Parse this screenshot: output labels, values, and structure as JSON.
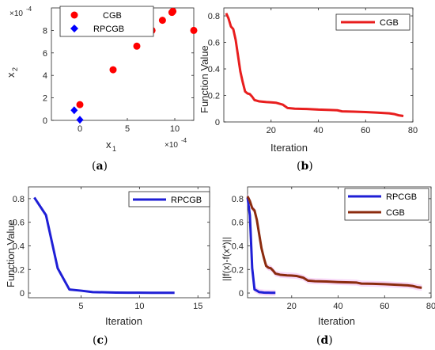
{
  "colors": {
    "cgb_scatter": "#ff0000",
    "rpcgb_scatter": "#0000ff",
    "cgb_line": "#e81e1e",
    "rpcgb_line": "#1f1fd6",
    "cgb_brown": "#8b2b0e",
    "band": "#f2b8f2"
  },
  "panels": [
    {
      "caption_open": "(",
      "caption_letter": "a",
      "caption_close": ")"
    },
    {
      "caption_open": "(",
      "caption_letter": "b",
      "caption_close": ")"
    },
    {
      "caption_open": "(",
      "caption_letter": "c",
      "caption_close": ")"
    },
    {
      "caption_open": "(",
      "caption_letter": "d",
      "caption_close": ")"
    }
  ],
  "chart_data": [
    {
      "type": "scatter",
      "xlabel": "x",
      "xlabel_sub": "1",
      "ylabel": "x",
      "ylabel_sub": "2",
      "x_exponent_base": "×10",
      "x_exponent": "-4",
      "y_exponent_base": "×10",
      "y_exponent": "-4",
      "xlim": [
        -3,
        12
      ],
      "ylim": [
        0,
        10
      ],
      "xticks": [
        0,
        5,
        10
      ],
      "yticks": [
        0,
        2,
        4,
        6,
        8
      ],
      "legend": "top-center",
      "series": [
        {
          "name": "CGB",
          "marker": "circle",
          "points": [
            [
              0.0,
              1.4
            ],
            [
              3.5,
              4.5
            ],
            [
              6.0,
              6.6
            ],
            [
              7.6,
              8.0
            ],
            [
              8.7,
              8.9
            ],
            [
              9.7,
              9.6
            ],
            [
              9.8,
              9.7
            ],
            [
              12.0,
              8.0
            ]
          ]
        },
        {
          "name": "RPCGB",
          "marker": "diamond",
          "points": [
            [
              -0.6,
              0.9
            ],
            [
              0.0,
              0.05
            ]
          ]
        }
      ]
    },
    {
      "type": "line",
      "xlabel": "Iteration",
      "ylabel": "Function Value",
      "xlim": [
        0,
        80
      ],
      "ylim": [
        0,
        0.86
      ],
      "xticks": [
        20,
        40,
        60,
        80
      ],
      "yticks": [
        0,
        0.2,
        0.4,
        0.6,
        0.8
      ],
      "legend": "top-right",
      "series": [
        {
          "name": "CGB",
          "x": [
            1,
            2,
            3,
            4,
            5,
            6,
            7,
            8,
            9,
            10,
            11,
            12,
            13,
            14,
            15,
            18,
            20,
            22,
            25,
            27,
            30,
            35,
            40,
            45,
            48,
            50,
            55,
            60,
            65,
            70,
            72,
            74,
            76
          ],
          "y": [
            0.82,
            0.78,
            0.72,
            0.7,
            0.62,
            0.5,
            0.38,
            0.3,
            0.23,
            0.215,
            0.21,
            0.19,
            0.165,
            0.16,
            0.155,
            0.15,
            0.148,
            0.145,
            0.13,
            0.105,
            0.1,
            0.098,
            0.093,
            0.09,
            0.088,
            0.08,
            0.078,
            0.075,
            0.07,
            0.065,
            0.06,
            0.05,
            0.045
          ]
        }
      ]
    },
    {
      "type": "line",
      "xlabel": "Iteration",
      "ylabel": "Function Value",
      "xlim": [
        0.5,
        16
      ],
      "ylim": [
        -0.04,
        0.9
      ],
      "xticks": [
        5,
        10,
        15
      ],
      "yticks": [
        0,
        0.2,
        0.4,
        0.6,
        0.8
      ],
      "legend": "top-right",
      "series": [
        {
          "name": "RPCGB",
          "x": [
            1,
            2,
            3,
            4,
            5,
            6,
            7,
            8,
            9,
            10,
            11,
            12,
            13
          ],
          "y": [
            0.81,
            0.66,
            0.21,
            0.03,
            0.02,
            0.008,
            0.006,
            0.004,
            0.003,
            0.003,
            0.002,
            0.002,
            0.002
          ]
        }
      ]
    },
    {
      "type": "line",
      "xlabel": "Iteration",
      "ylabel": "||f(x)-f(x*)||",
      "xlim": [
        1,
        80
      ],
      "ylim": [
        -0.04,
        0.9
      ],
      "xticks": [
        20,
        40,
        60,
        80
      ],
      "yticks": [
        0,
        0.2,
        0.4,
        0.6,
        0.8
      ],
      "legend": "top-right",
      "series": [
        {
          "name": "RPCGB",
          "x": [
            1,
            2,
            3,
            4,
            5,
            6,
            7,
            8,
            9,
            10,
            11,
            12,
            13
          ],
          "y": [
            0.81,
            0.66,
            0.21,
            0.03,
            0.02,
            0.008,
            0.006,
            0.004,
            0.003,
            0.003,
            0.002,
            0.002,
            0.002
          ]
        },
        {
          "name": "CGB",
          "x": [
            1,
            2,
            3,
            4,
            5,
            6,
            7,
            8,
            9,
            10,
            11,
            12,
            13,
            14,
            15,
            18,
            20,
            22,
            25,
            27,
            30,
            35,
            40,
            45,
            48,
            50,
            55,
            60,
            65,
            70,
            72,
            74,
            76
          ],
          "y": [
            0.82,
            0.78,
            0.72,
            0.7,
            0.62,
            0.5,
            0.38,
            0.3,
            0.23,
            0.215,
            0.21,
            0.19,
            0.165,
            0.16,
            0.155,
            0.15,
            0.148,
            0.145,
            0.13,
            0.105,
            0.1,
            0.098,
            0.093,
            0.09,
            0.088,
            0.08,
            0.078,
            0.075,
            0.07,
            0.065,
            0.06,
            0.05,
            0.045
          ]
        }
      ]
    }
  ]
}
